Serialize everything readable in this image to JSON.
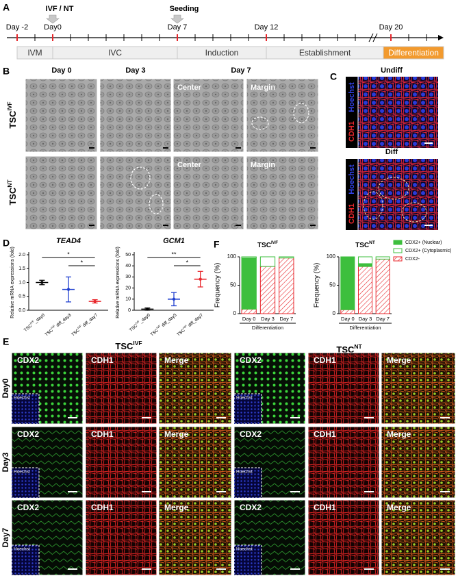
{
  "panels": {
    "a": {
      "letter": "A",
      "events": [
        "IVF / NT",
        "Seeding"
      ],
      "days": [
        "Day -2",
        "Day0",
        "Day 7",
        "Day 12",
        "Day 20"
      ],
      "stages": [
        "IVM",
        "IVC",
        "Induction",
        "Establishment",
        "Differentiation"
      ]
    },
    "b": {
      "letter": "B",
      "columns": [
        "Day 0",
        "Day 3",
        "Day 7"
      ],
      "regions": [
        "Center",
        "Margin"
      ],
      "rows": [
        {
          "base": "TSC",
          "sup": "IVF"
        },
        {
          "base": "TSC",
          "sup": "NT"
        }
      ]
    },
    "c": {
      "letter": "C",
      "conditions": [
        "Undiff",
        "Diff"
      ],
      "stains": [
        "CDH1",
        "Hoechst"
      ]
    },
    "d": {
      "letter": "D"
    },
    "f": {
      "letter": "F"
    },
    "e": {
      "letter": "E",
      "groups": [
        {
          "base": "TSC",
          "sup": "IVF"
        },
        {
          "base": "TSC",
          "sup": "NT"
        }
      ],
      "rows": [
        "Day0",
        "Day3",
        "Day7"
      ],
      "channels": [
        "CDX2",
        "CDH1",
        "Merge"
      ],
      "inset": "Hoechst"
    }
  },
  "chart_data": [
    {
      "type": "errorbar",
      "title": "TEAD4",
      "y_label": "Relative mRNA expressions (fold)",
      "categories": [
        {
          "base": "TSC",
          "sup": "IVF",
          "suffix": "_day0"
        },
        {
          "base": "TSC",
          "sup": "IVF",
          "suffix": " diff_day3"
        },
        {
          "base": "TSC",
          "sup": "IVF",
          "suffix": " diff_day7"
        }
      ],
      "values": [
        1.0,
        0.75,
        0.32
      ],
      "errors": [
        0.08,
        0.45,
        0.06
      ],
      "colors": [
        "#000000",
        "#1f3fcf",
        "#e8262b"
      ],
      "ylim": [
        0,
        2
      ],
      "yticks": [
        {
          "value": 0,
          "label": "0.0"
        },
        0.5,
        {
          "value": 1,
          "label": "1.0"
        },
        1.5,
        {
          "value": 2,
          "label": "2.0"
        }
      ],
      "significance": [
        "*",
        "*"
      ]
    },
    {
      "type": "errorbar",
      "title": "GCM1",
      "y_label": "Relative mRNA expressions (fold)",
      "categories": [
        {
          "base": "TSC",
          "sup": "IVF",
          "suffix": "_day0"
        },
        {
          "base": "TSC",
          "sup": "IVF",
          "suffix": " diff_day3"
        },
        {
          "base": "TSC",
          "sup": "IVF",
          "suffix": " diff_day7"
        }
      ],
      "values": [
        1,
        10,
        28
      ],
      "errors": [
        1,
        6,
        7
      ],
      "colors": [
        "#000000",
        "#1f3fcf",
        "#e8262b"
      ],
      "ylim": [
        0,
        50
      ],
      "yticks": [
        0,
        10,
        20,
        30,
        40,
        50
      ],
      "significance": [
        "**",
        "*"
      ]
    },
    {
      "type": "stacked_bar",
      "title": {
        "base": "TSC",
        "sup": "IVF"
      },
      "y_label": "Frequency  (%)",
      "x_label": "Differentiation",
      "categories": [
        "Day 0",
        "Day 3",
        "Day 7"
      ],
      "series": [
        {
          "name": "CDX2+ (Nuclear)",
          "color": "#3dbf3d",
          "style": "solid",
          "values": [
            90,
            0,
            0
          ]
        },
        {
          "name": "CDX2+ (Cytoplasmic)",
          "color": "#3dbf3d",
          "style": "outline",
          "values": [
            2,
            17,
            2
          ]
        },
        {
          "name": "CDX2-",
          "color": "#e8262b",
          "style": "hatch",
          "values": [
            8,
            83,
            98
          ]
        }
      ],
      "ylim": [
        0,
        100
      ],
      "yticks": [
        0,
        50,
        100
      ],
      "legend": "right"
    },
    {
      "type": "stacked_bar",
      "title": {
        "base": "TSC",
        "sup": "NT"
      },
      "y_label": "Frequency  (%)",
      "x_label": "Differentiation",
      "categories": [
        "Day 0",
        "Day 3",
        "Day 7"
      ],
      "series": [
        {
          "color": "#3dbf3d",
          "style": "solid",
          "values": [
            93,
            5,
            0
          ]
        },
        {
          "color": "#3dbf3d",
          "style": "outline",
          "values": [
            0,
            12,
            4
          ]
        },
        {
          "color": "#e8262b",
          "style": "hatch",
          "values": [
            7,
            83,
            96
          ]
        }
      ],
      "ylim": [
        0,
        100
      ],
      "yticks": [
        0,
        50,
        100
      ]
    }
  ]
}
